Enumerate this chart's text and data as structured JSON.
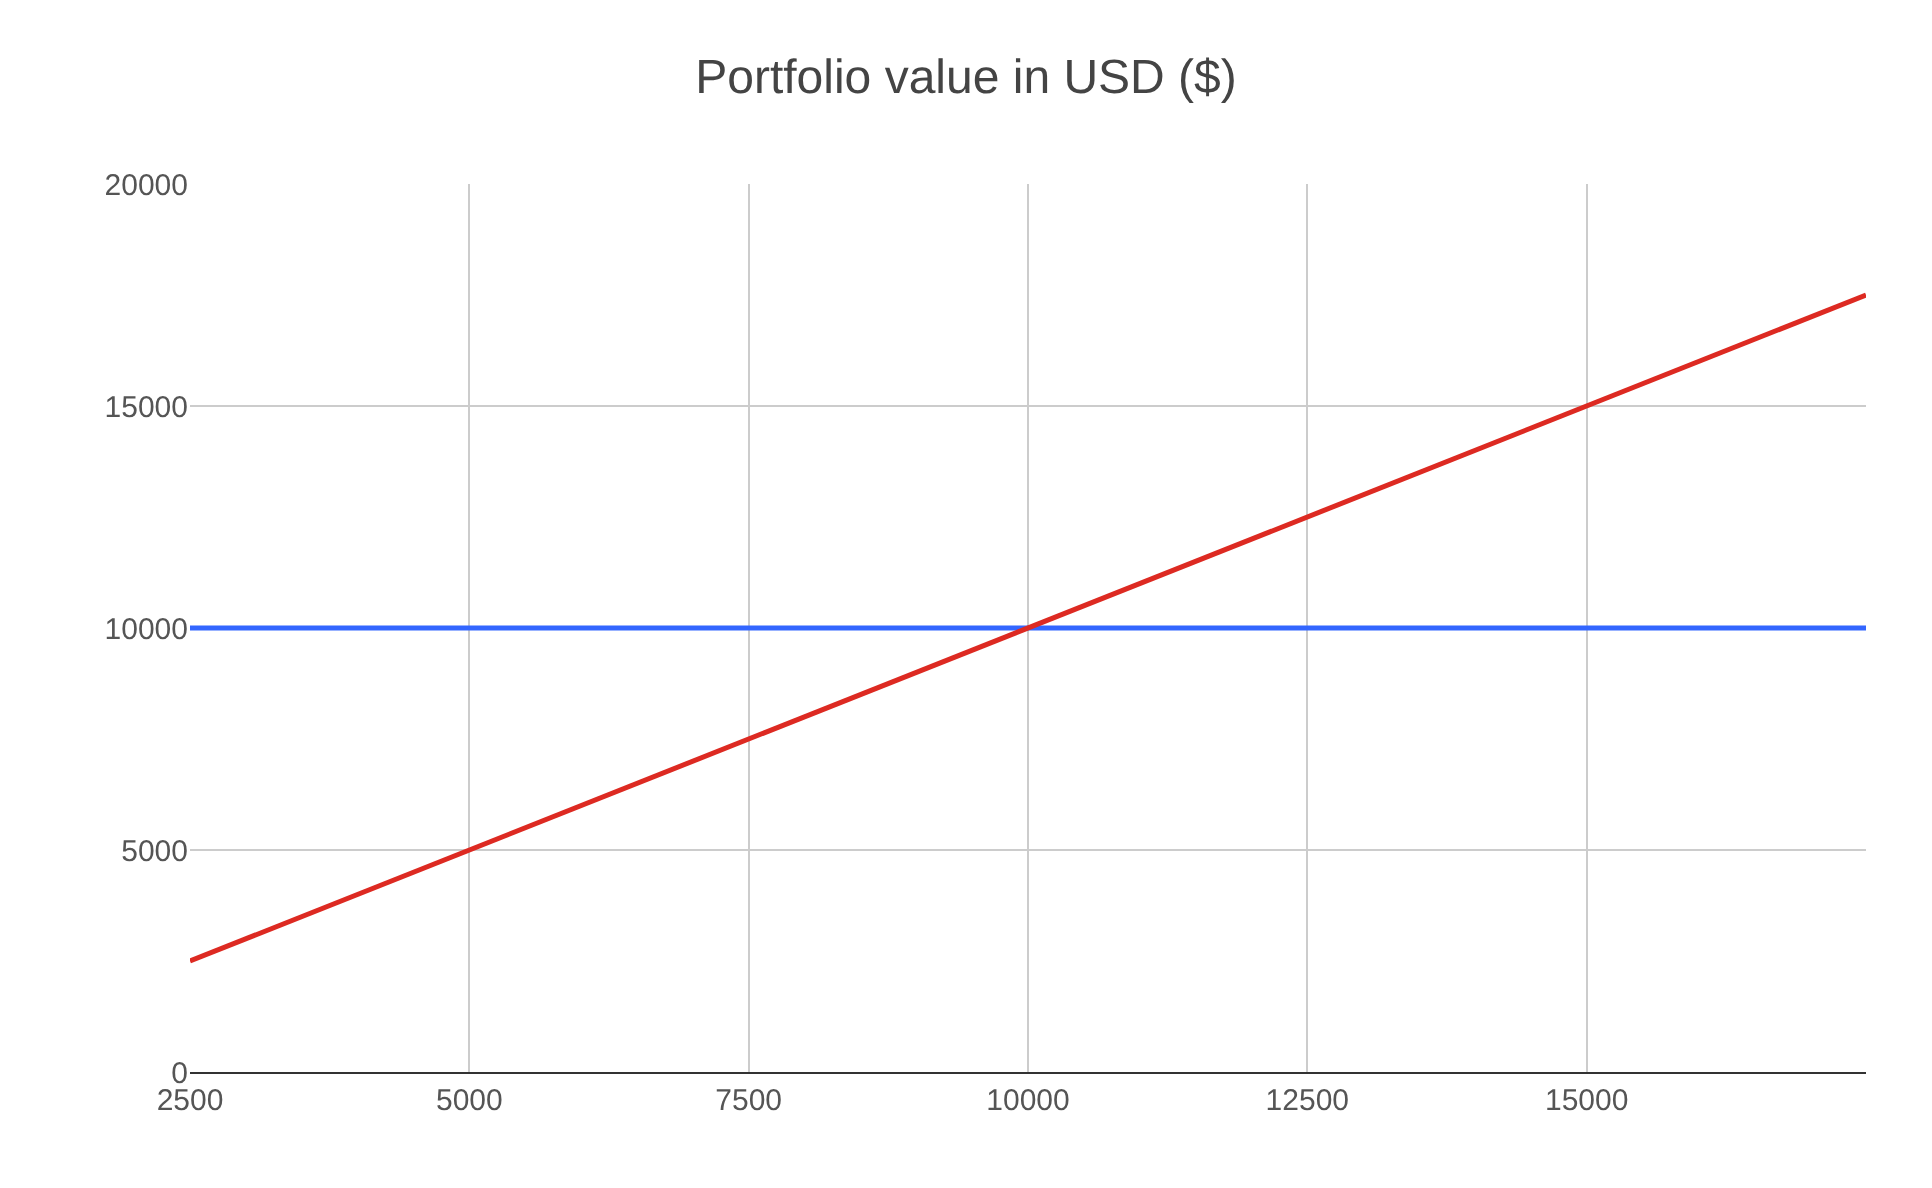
{
  "chart_data": {
    "type": "line",
    "title": "Portfolio value in USD ($)",
    "x": [
      2500,
      17500
    ],
    "series": [
      {
        "color": "#3366ff",
        "values": [
          10000,
          10000
        ]
      },
      {
        "color": "#dd2a22",
        "values": [
          2500,
          17500
        ]
      }
    ],
    "xlim": [
      2500,
      17500
    ],
    "xticks": [
      2500,
      5000,
      7500,
      10000,
      12500,
      15000
    ],
    "ylim": [
      0,
      20000
    ],
    "yticks": [
      0,
      5000,
      10000,
      15000,
      20000
    ],
    "grid": true,
    "marker": "none",
    "line_style": "solid"
  }
}
